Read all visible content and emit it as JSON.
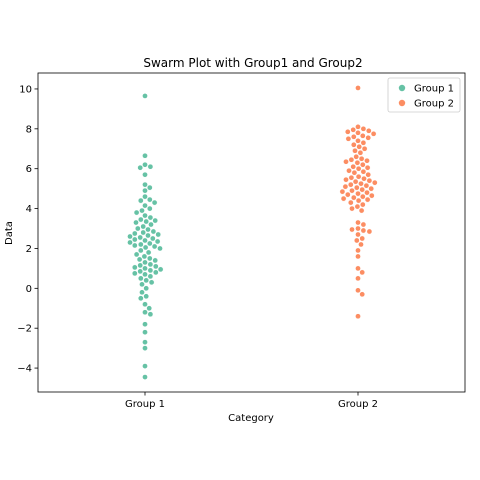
{
  "chart_data": {
    "type": "scatter",
    "subtype": "swarm",
    "title": "Swarm Plot with Group1 and Group2",
    "xlabel": "Category",
    "ylabel": "Data",
    "categories": [
      "Group 1",
      "Group 2"
    ],
    "ylim": [
      -5.2,
      10.8
    ],
    "yticks": [
      -4,
      -2,
      0,
      2,
      4,
      6,
      8,
      10
    ],
    "ytick_labels": [
      "−4",
      "−2",
      "0",
      "2",
      "4",
      "6",
      "8",
      "10"
    ],
    "grid": false,
    "legend": "top-right",
    "series": [
      {
        "name": "Group 1",
        "color": "#66c2a5",
        "category": "Group 1",
        "values": [
          9.65,
          6.65,
          6.2,
          6.1,
          6.05,
          5.7,
          5.2,
          5.05,
          4.9,
          4.6,
          4.45,
          4.4,
          4.3,
          4.15,
          4.0,
          3.9,
          3.8,
          3.65,
          3.55,
          3.45,
          3.4,
          3.35,
          3.3,
          3.2,
          3.1,
          3.0,
          2.95,
          2.85,
          2.8,
          2.75,
          2.7,
          2.65,
          2.6,
          2.55,
          2.5,
          2.45,
          2.4,
          2.35,
          2.3,
          2.25,
          2.2,
          2.15,
          2.1,
          2.05,
          2.0,
          1.9,
          1.8,
          1.7,
          1.6,
          1.5,
          1.45,
          1.4,
          1.3,
          1.2,
          1.15,
          1.1,
          1.05,
          1.0,
          0.95,
          0.9,
          0.85,
          0.8,
          0.75,
          0.7,
          0.6,
          0.5,
          0.4,
          0.3,
          0.2,
          0.0,
          -0.2,
          -0.4,
          -0.5,
          -0.8,
          -1.0,
          -1.2,
          -1.3,
          -1.8,
          -2.2,
          -2.7,
          -3.0,
          -3.9,
          -4.45
        ]
      },
      {
        "name": "Group 2",
        "color": "#fc8d62",
        "category": "Group 2",
        "values": [
          10.05,
          8.1,
          8.0,
          7.95,
          7.9,
          7.85,
          7.8,
          7.75,
          7.65,
          7.6,
          7.55,
          7.5,
          7.4,
          7.3,
          7.2,
          7.1,
          7.0,
          6.9,
          6.8,
          6.6,
          6.5,
          6.45,
          6.4,
          6.35,
          6.3,
          6.2,
          6.1,
          6.05,
          6.0,
          5.9,
          5.85,
          5.8,
          5.7,
          5.6,
          5.55,
          5.5,
          5.45,
          5.4,
          5.35,
          5.3,
          5.25,
          5.2,
          5.15,
          5.1,
          5.05,
          5.0,
          4.95,
          4.9,
          4.85,
          4.8,
          4.75,
          4.7,
          4.65,
          4.6,
          4.55,
          4.5,
          4.45,
          4.4,
          4.3,
          4.2,
          4.1,
          4.0,
          3.9,
          3.3,
          3.2,
          3.0,
          2.95,
          2.9,
          2.85,
          2.7,
          2.5,
          2.4,
          2.2,
          1.9,
          1.6,
          1.0,
          0.8,
          0.5,
          -0.1,
          -0.3,
          -1.4
        ]
      }
    ]
  }
}
